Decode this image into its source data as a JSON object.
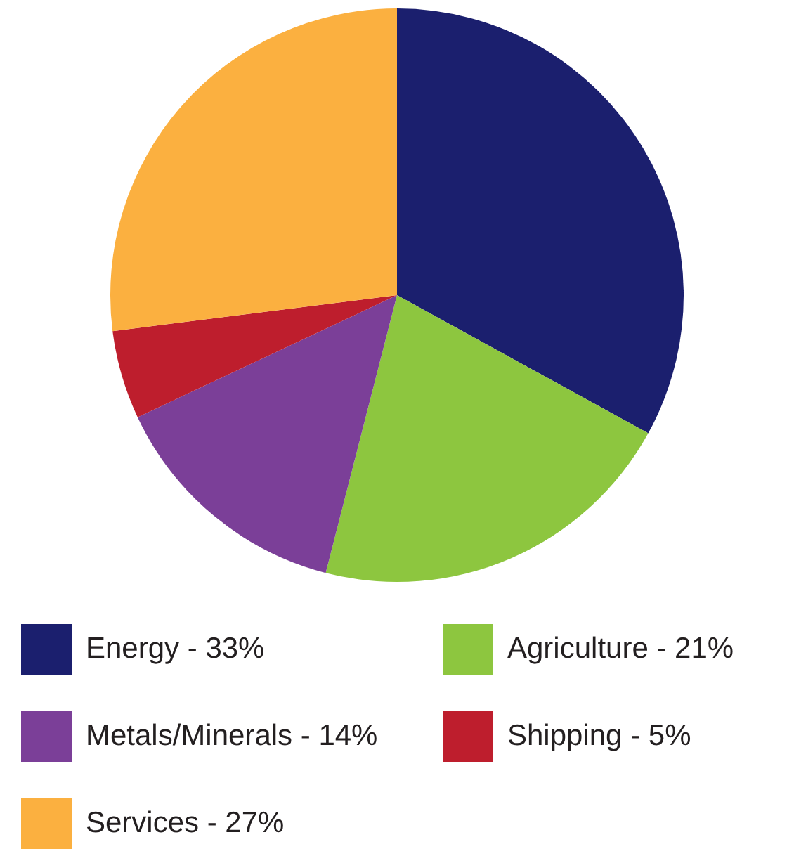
{
  "chart_data": {
    "type": "pie",
    "categories": [
      "Energy - 33%",
      "Agriculture - 21%",
      "Metals/Minerals - 14%",
      "Shipping - 5%",
      "Services - 27%"
    ],
    "values": [
      33,
      21,
      14,
      5,
      27
    ],
    "colors": [
      "#1b1f6e",
      "#8dc63f",
      "#7b3f98",
      "#be1e2d",
      "#fbb040"
    ],
    "legend": "bottom"
  }
}
